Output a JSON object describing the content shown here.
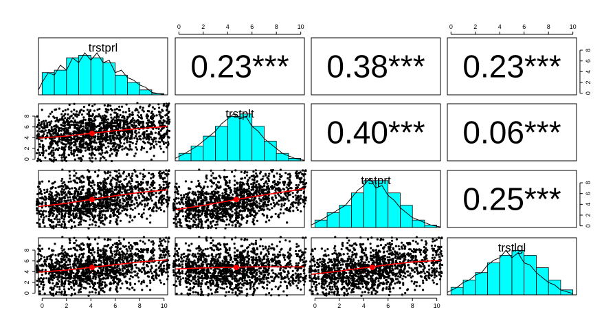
{
  "chart_data": {
    "type": "scatter-matrix",
    "variables": [
      "trstprl",
      "trstplt",
      "trstprt",
      "trstlgl"
    ],
    "axis_range": [
      -0.3,
      10.3
    ],
    "tick_values": [
      0,
      2,
      4,
      6,
      8,
      10
    ],
    "tick_labels": [
      "0",
      "2",
      "4",
      "6",
      "8",
      "10"
    ],
    "correlations": [
      {
        "row": 0,
        "col": 1,
        "label": "0.23***"
      },
      {
        "row": 0,
        "col": 2,
        "label": "0.38***"
      },
      {
        "row": 0,
        "col": 3,
        "label": "0.23***"
      },
      {
        "row": 1,
        "col": 2,
        "label": "0.40***"
      },
      {
        "row": 1,
        "col": 3,
        "label": "0.06***"
      },
      {
        "row": 2,
        "col": 3,
        "label": "0.25***"
      }
    ],
    "histograms": [
      {
        "var": "trstprl",
        "bin_edges": [
          0,
          1,
          2,
          3,
          4,
          5,
          6,
          7,
          8,
          9,
          10
        ],
        "densities": [
          0.09,
          0.1,
          0.15,
          0.16,
          0.15,
          0.13,
          0.08,
          0.05,
          0.02,
          0.005
        ],
        "density_curve": [
          [
            -0.3,
            0.02
          ],
          [
            0,
            0.05
          ],
          [
            0.5,
            0.09
          ],
          [
            1,
            0.08
          ],
          [
            1.5,
            0.12
          ],
          [
            2,
            0.1
          ],
          [
            2.5,
            0.15
          ],
          [
            3,
            0.13
          ],
          [
            3.5,
            0.17
          ],
          [
            4,
            0.14
          ],
          [
            4.5,
            0.17
          ],
          [
            5,
            0.13
          ],
          [
            5.5,
            0.14
          ],
          [
            6,
            0.09
          ],
          [
            6.5,
            0.1
          ],
          [
            7,
            0.07
          ],
          [
            7.5,
            0.06
          ],
          [
            8,
            0.04
          ],
          [
            8.5,
            0.03
          ],
          [
            9,
            0.01
          ],
          [
            10,
            0.001
          ]
        ]
      },
      {
        "var": "trstplt",
        "bin_edges": [
          0,
          1,
          2,
          3,
          4,
          5,
          6,
          7,
          8,
          9,
          10
        ],
        "densities": [
          0.03,
          0.06,
          0.1,
          0.14,
          0.18,
          0.19,
          0.14,
          0.08,
          0.03,
          0.01
        ],
        "density_curve": [
          [
            -0.3,
            0.01
          ],
          [
            0.5,
            0.03
          ],
          [
            1.5,
            0.06
          ],
          [
            2.5,
            0.1
          ],
          [
            3,
            0.12
          ],
          [
            3.5,
            0.15
          ],
          [
            4,
            0.17
          ],
          [
            4.5,
            0.19
          ],
          [
            5,
            0.17
          ],
          [
            5.5,
            0.18
          ],
          [
            6,
            0.14
          ],
          [
            6.5,
            0.12
          ],
          [
            7,
            0.09
          ],
          [
            7.5,
            0.07
          ],
          [
            8,
            0.05
          ],
          [
            8.5,
            0.03
          ],
          [
            9,
            0.02
          ],
          [
            9.5,
            0.01
          ],
          [
            10.3,
            0.002
          ]
        ]
      },
      {
        "var": "trstprt",
        "bin_edges": [
          0,
          1,
          2,
          3,
          4,
          5,
          6,
          7,
          8,
          9,
          10
        ],
        "densities": [
          0.03,
          0.06,
          0.09,
          0.14,
          0.19,
          0.19,
          0.14,
          0.09,
          0.03,
          0.01
        ],
        "density_curve": [
          [
            -0.3,
            0.01
          ],
          [
            0.5,
            0.03
          ],
          [
            1.5,
            0.06
          ],
          [
            2.5,
            0.09
          ],
          [
            3,
            0.12
          ],
          [
            3.5,
            0.15
          ],
          [
            4,
            0.17
          ],
          [
            4.5,
            0.2
          ],
          [
            5,
            0.16
          ],
          [
            5.5,
            0.17
          ],
          [
            6,
            0.13
          ],
          [
            6.5,
            0.11
          ],
          [
            7,
            0.08
          ],
          [
            7.5,
            0.06
          ],
          [
            8,
            0.04
          ],
          [
            8.5,
            0.03
          ],
          [
            9,
            0.02
          ],
          [
            9.5,
            0.01
          ],
          [
            10.3,
            0.002
          ]
        ]
      },
      {
        "var": "trstlgl",
        "bin_edges": [
          0,
          1,
          2,
          3,
          4,
          5,
          6,
          7,
          8,
          9,
          10
        ],
        "densities": [
          0.03,
          0.06,
          0.09,
          0.13,
          0.16,
          0.18,
          0.16,
          0.11,
          0.06,
          0.02
        ],
        "density_curve": [
          [
            -0.3,
            0.01
          ],
          [
            0.5,
            0.03
          ],
          [
            1,
            0.05
          ],
          [
            1.5,
            0.06
          ],
          [
            2,
            0.08
          ],
          [
            2.5,
            0.09
          ],
          [
            3,
            0.12
          ],
          [
            3.5,
            0.14
          ],
          [
            4,
            0.15
          ],
          [
            4.5,
            0.18
          ],
          [
            5,
            0.15
          ],
          [
            5.5,
            0.17
          ],
          [
            6,
            0.13
          ],
          [
            6.5,
            0.12
          ],
          [
            7,
            0.09
          ],
          [
            7.5,
            0.07
          ],
          [
            8,
            0.05
          ],
          [
            8.5,
            0.04
          ],
          [
            9,
            0.02
          ],
          [
            10,
            0.005
          ]
        ]
      }
    ],
    "scatter_panels": [
      {
        "row": 1,
        "col": 0,
        "x_var": "trstprl",
        "y_var": "trstplt",
        "fit_line": [
          [
            -0.3,
            3.9
          ],
          [
            2,
            4.3
          ],
          [
            4,
            4.8
          ],
          [
            6,
            5.3
          ],
          [
            8,
            5.7
          ],
          [
            10.3,
            6.1
          ]
        ],
        "mean_point": [
          4.1,
          4.8
        ]
      },
      {
        "row": 2,
        "col": 0,
        "x_var": "trstprl",
        "y_var": "trstprt",
        "fit_line": [
          [
            -0.3,
            3.6
          ],
          [
            2,
            4.2
          ],
          [
            4,
            4.9
          ],
          [
            6,
            5.6
          ],
          [
            8,
            6.2
          ],
          [
            10.3,
            6.7
          ]
        ],
        "mean_point": [
          4.1,
          4.9
        ]
      },
      {
        "row": 2,
        "col": 1,
        "x_var": "trstplt",
        "y_var": "trstprt",
        "fit_line": [
          [
            -0.3,
            3.0
          ],
          [
            2,
            3.8
          ],
          [
            4,
            4.6
          ],
          [
            6,
            5.4
          ],
          [
            8,
            6.1
          ],
          [
            10.3,
            6.9
          ]
        ],
        "mean_point": [
          4.7,
          4.9
        ]
      },
      {
        "row": 3,
        "col": 0,
        "x_var": "trstprl",
        "y_var": "trstlgl",
        "fit_line": [
          [
            -0.3,
            3.9
          ],
          [
            2,
            4.3
          ],
          [
            4,
            4.8
          ],
          [
            6,
            5.3
          ],
          [
            8,
            5.8
          ],
          [
            10.3,
            6.2
          ]
        ],
        "mean_point": [
          4.1,
          4.8
        ]
      },
      {
        "row": 3,
        "col": 1,
        "x_var": "trstplt",
        "y_var": "trstlgl",
        "fit_line": [
          [
            -0.3,
            4.5
          ],
          [
            2,
            4.7
          ],
          [
            4,
            4.8
          ],
          [
            6,
            4.9
          ],
          [
            8,
            4.9
          ],
          [
            10.3,
            4.9
          ]
        ],
        "mean_point": [
          4.7,
          4.8
        ]
      },
      {
        "row": 3,
        "col": 2,
        "x_var": "trstprt",
        "y_var": "trstlgl",
        "fit_line": [
          [
            -0.3,
            3.5
          ],
          [
            2,
            4.1
          ],
          [
            4,
            4.7
          ],
          [
            6,
            5.3
          ],
          [
            8,
            5.8
          ],
          [
            10.3,
            6.1
          ]
        ],
        "mean_point": [
          4.7,
          4.8
        ]
      }
    ],
    "colors": {
      "histogram_fill": "#00ffff",
      "fit_line": "#ff0000",
      "mean_point": "#ff0000",
      "points": "#000000",
      "frame": "#000000"
    }
  }
}
